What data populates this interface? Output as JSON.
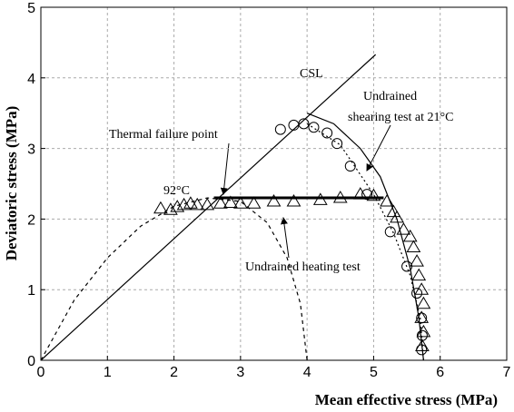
{
  "chart_data": {
    "type": "scatter",
    "xlabel": "Mean effective stress (MPa)",
    "ylabel": "Deviatoric stress (MPa)",
    "xlim": [
      0,
      7
    ],
    "xticks": [
      0,
      1,
      2,
      3,
      4,
      5,
      6,
      7
    ],
    "ylim": [
      0,
      5
    ],
    "yticks": [
      0,
      1,
      2,
      3,
      4,
      5
    ],
    "grid": true,
    "series": [
      {
        "style": "solid",
        "color": "#000000",
        "x": [
          0,
          5.03
        ],
        "values": [
          0,
          4.33
        ]
      },
      {
        "style": "solid",
        "color": "#000000",
        "x": [
          4.0,
          4.4,
          4.8,
          5.1,
          5.35,
          5.55,
          5.68,
          5.75
        ],
        "values": [
          3.5,
          3.35,
          3.0,
          2.6,
          2.0,
          1.3,
          0.6,
          0
        ]
      },
      {
        "style": "dashed",
        "color": "#000000",
        "x": [
          0,
          0.5,
          1.0,
          1.5,
          2.0,
          2.5,
          3.0,
          3.4,
          3.7,
          3.9,
          4.0
        ],
        "values": [
          0,
          0.85,
          1.45,
          1.9,
          2.18,
          2.3,
          2.25,
          1.95,
          1.45,
          0.8,
          0
        ]
      },
      {
        "style": "dotted",
        "color": "#000000",
        "x": [
          4.0,
          4.5,
          5.0,
          5.3,
          5.55,
          5.7,
          5.75
        ],
        "values": [
          3.35,
          3.05,
          2.35,
          1.8,
          1.2,
          0.6,
          0
        ]
      },
      {
        "style": "thick",
        "color": "#000000",
        "x": [
          2.6,
          5.15
        ],
        "values": [
          2.3,
          2.3
        ]
      },
      {
        "style": "open-circle",
        "color": "#000000",
        "x": [
          3.6,
          3.8,
          3.95,
          4.1,
          4.3,
          4.45,
          4.65,
          4.9,
          5.25,
          5.5,
          5.65,
          5.72,
          5.73,
          5.72
        ],
        "values": [
          3.27,
          3.33,
          3.35,
          3.3,
          3.22,
          3.07,
          2.75,
          2.35,
          1.82,
          1.33,
          0.95,
          0.6,
          0.35,
          0.15
        ]
      },
      {
        "style": "open-triangle",
        "color": "#000000",
        "x": [
          1.8,
          1.95,
          2.05,
          2.15,
          2.25,
          2.35,
          2.5,
          2.7,
          2.85,
          3.0,
          3.2,
          3.5,
          3.8,
          4.2,
          4.5,
          4.8,
          5.0,
          5.2,
          5.3,
          5.35,
          5.45,
          5.55,
          5.6,
          5.65,
          5.68,
          5.72,
          5.75,
          5.72,
          5.75,
          5.73
        ],
        "values": [
          2.15,
          2.13,
          2.17,
          2.2,
          2.22,
          2.2,
          2.2,
          2.22,
          2.23,
          2.22,
          2.22,
          2.25,
          2.25,
          2.27,
          2.3,
          2.35,
          2.33,
          2.25,
          2.1,
          2.02,
          1.85,
          1.75,
          1.6,
          1.4,
          1.2,
          1.0,
          0.8,
          0.6,
          0.4,
          0.2
        ]
      }
    ],
    "annotations": [
      "CSL",
      "Undrained",
      "shearing test at 21°C",
      "Thermal failure point",
      "92°C",
      "Undrained heating test"
    ]
  }
}
